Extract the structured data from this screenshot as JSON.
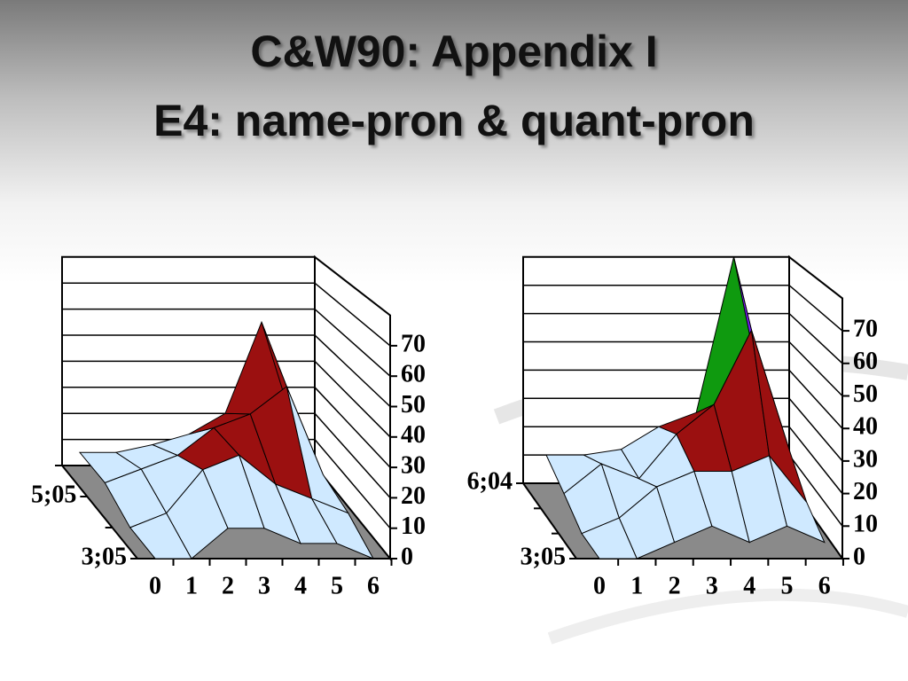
{
  "header": {
    "title_line1": "C&W90: Appendix I",
    "title_line2": "E4: name-pron & quant-pron"
  },
  "chart_data": [
    {
      "type": "surface",
      "x_categories": [
        "0",
        "1",
        "2",
        "3",
        "4",
        "5",
        "6"
      ],
      "y_categories": [
        null,
        "5;05",
        null,
        "3;05"
      ],
      "z": [
        [
          5,
          5,
          8,
          12,
          20,
          55,
          10
        ],
        [
          5,
          10,
          15,
          25,
          30,
          40,
          8
        ],
        [
          0,
          5,
          20,
          25,
          15,
          10,
          5
        ],
        [
          0,
          0,
          10,
          10,
          5,
          5,
          0
        ]
      ],
      "zlim": [
        0,
        80
      ],
      "zticks": [
        0,
        10,
        20,
        30,
        40,
        50,
        60,
        70
      ],
      "colors": [
        "#cfe9ff",
        "#cfe9ff",
        "#9b1010",
        "#9b1010",
        "#7a1cff",
        "#0f9a0f",
        "#8c8c8c",
        "#111111"
      ],
      "grid": true
    },
    {
      "type": "surface",
      "x_categories": [
        "0",
        "1",
        "2",
        "3",
        "4",
        "5",
        "6"
      ],
      "y_categories": [
        "6;04",
        null,
        null,
        "3;05"
      ],
      "z": [
        [
          10,
          10,
          12,
          20,
          25,
          80,
          15
        ],
        [
          5,
          15,
          10,
          25,
          35,
          60,
          20
        ],
        [
          0,
          5,
          15,
          20,
          20,
          25,
          10
        ],
        [
          0,
          0,
          5,
          10,
          5,
          10,
          5
        ]
      ],
      "zlim": [
        0,
        80
      ],
      "zticks": [
        0,
        10,
        20,
        30,
        40,
        50,
        60,
        70
      ],
      "colors": [
        "#cfe9ff",
        "#cfe9ff",
        "#9b1010",
        "#9b1010",
        "#7a1cff",
        "#0f9a0f",
        "#8c8c8c",
        "#111111"
      ],
      "grid": true
    }
  ]
}
